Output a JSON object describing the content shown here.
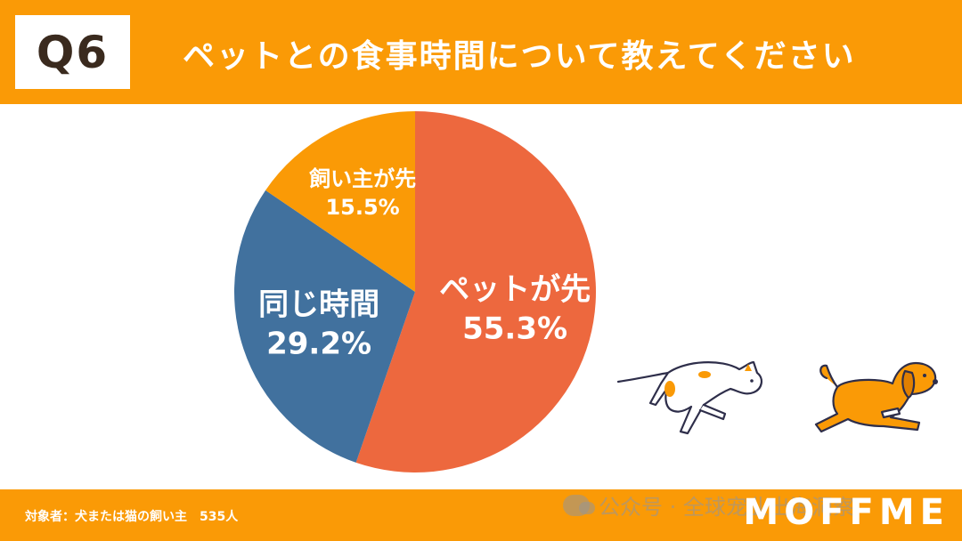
{
  "header": {
    "q_label": "Q6",
    "question": "ペットとの食事時間について教えてください"
  },
  "footer": {
    "footnote": "対象者：犬または猫の飼い主　535人",
    "brand": "MOFFME",
    "watermark": "公众号 · 全球宠业出海洞察"
  },
  "chart_data": {
    "type": "pie",
    "slices": [
      {
        "label": "ペットが先",
        "value": 55.3,
        "value_label": "55.3%",
        "color": "#ED683E"
      },
      {
        "label": "同じ時間",
        "value": 29.2,
        "value_label": "29.2%",
        "color": "#41719E"
      },
      {
        "label": "飼い主が先",
        "value": 15.5,
        "value_label": "15.5%",
        "color": "#FA9A06"
      }
    ]
  },
  "illustration": {
    "left": "cat-running",
    "right": "dog-running"
  }
}
